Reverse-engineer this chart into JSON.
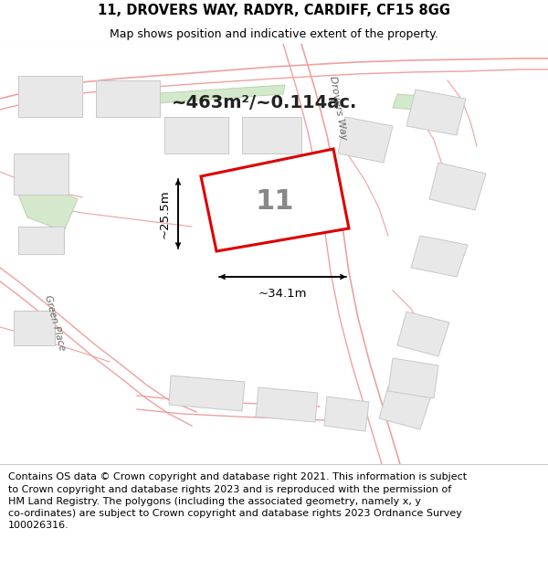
{
  "title": "11, DROVERS WAY, RADYR, CARDIFF, CF15 8GG",
  "subtitle": "Map shows position and indicative extent of the property.",
  "footer": "Contains OS data © Crown copyright and database right 2021. This information is subject\nto Crown copyright and database rights 2023 and is reproduced with the permission of\nHM Land Registry. The polygons (including the associated geometry, namely x, y\nco-ordinates) are subject to Crown copyright and database rights 2023 Ordnance Survey\n100026316.",
  "area_text": "~463m²/~0.114ac.",
  "dimension_width": "~34.1m",
  "dimension_height": "~25.5m",
  "plot_number": "11",
  "map_bg": "#ffffff",
  "road_stroke": "#f0a0a0",
  "plot_outline_color": "#dd0000",
  "building_fill": "#e8e8e8",
  "building_stroke": "#c8c8c8",
  "green_fill": "#d4e8cc",
  "green_stroke": "#b8d4a8",
  "title_fontsize": 10.5,
  "subtitle_fontsize": 9,
  "footer_fontsize": 8,
  "dim_color": "#000000",
  "area_fontsize": 14,
  "plot_label_fontsize": 22,
  "plot_label_color": "#888888",
  "road_label_color": "#666666",
  "road_label_fontsize": 8
}
